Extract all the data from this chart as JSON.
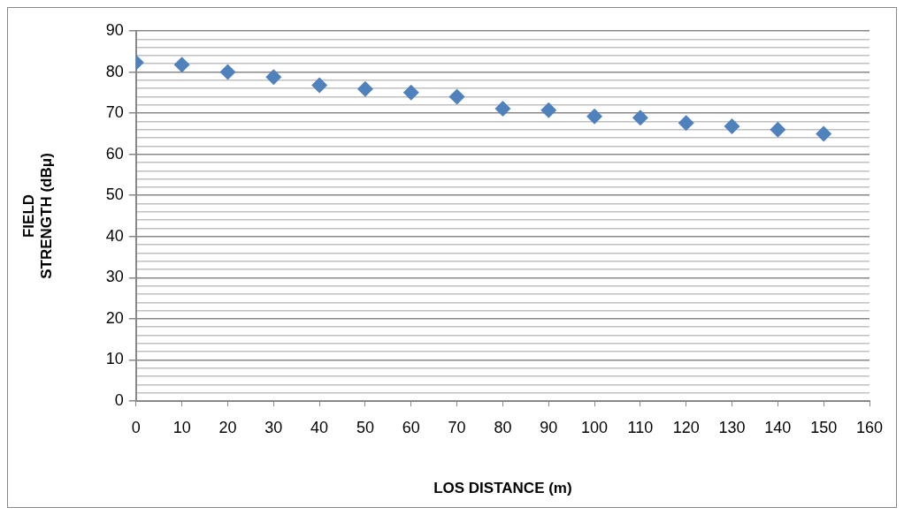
{
  "chart_data": {
    "type": "scatter",
    "xlabel": "LOS DISTANCE (m)",
    "ylabel": "FIELD STRENGTH (dBμ)",
    "x": [
      0,
      10,
      20,
      30,
      40,
      50,
      60,
      70,
      80,
      90,
      100,
      110,
      120,
      130,
      140,
      150
    ],
    "series": [
      {
        "color": "#4f81bd",
        "values": [
          82.3,
          81.8,
          80,
          78.8,
          76.8,
          75.9,
          75,
          74,
          71.1,
          70.7,
          69.2,
          68.9,
          67.6,
          66.8,
          66,
          65
        ]
      }
    ],
    "xlim": [
      0,
      160
    ],
    "xticks": [
      0,
      10,
      20,
      30,
      40,
      50,
      60,
      70,
      80,
      90,
      100,
      110,
      120,
      130,
      140,
      150,
      160
    ],
    "ylim": [
      0,
      90
    ],
    "yticks": [
      0,
      {
        "value": 2,
        "label": null
      },
      {
        "value": 4,
        "label": null
      },
      {
        "value": 6,
        "label": null
      },
      {
        "value": 8,
        "label": null
      },
      10,
      {
        "value": 12,
        "label": null
      },
      {
        "value": 14,
        "label": null
      },
      {
        "value": 16,
        "label": null
      },
      {
        "value": 18,
        "label": null
      },
      20,
      {
        "value": 22,
        "label": null
      },
      {
        "value": 24,
        "label": null
      },
      {
        "value": 26,
        "label": null
      },
      {
        "value": 28,
        "label": null
      },
      30,
      {
        "value": 32,
        "label": null
      },
      {
        "value": 34,
        "label": null
      },
      {
        "value": 36,
        "label": null
      },
      {
        "value": 38,
        "label": null
      },
      40,
      {
        "value": 42,
        "label": null
      },
      {
        "value": 44,
        "label": null
      },
      {
        "value": 46,
        "label": null
      },
      {
        "value": 48,
        "label": null
      },
      50,
      {
        "value": 52,
        "label": null
      },
      {
        "value": 54,
        "label": null
      },
      {
        "value": 56,
        "label": null
      },
      {
        "value": 58,
        "label": null
      },
      60,
      {
        "value": 62,
        "label": null
      },
      {
        "value": 64,
        "label": null
      },
      {
        "value": 66,
        "label": null
      },
      {
        "value": 68,
        "label": null
      },
      70,
      {
        "value": 72,
        "label": null
      },
      {
        "value": 74,
        "label": null
      },
      {
        "value": 76,
        "label": null
      },
      {
        "value": 78,
        "label": null
      },
      80,
      {
        "value": 82,
        "label": null
      },
      {
        "value": 84,
        "label": null
      },
      {
        "value": 86,
        "label": null
      },
      {
        "value": 88,
        "label": null
      },
      90
    ],
    "grid": "y",
    "legend": false,
    "marker": "diamond"
  }
}
